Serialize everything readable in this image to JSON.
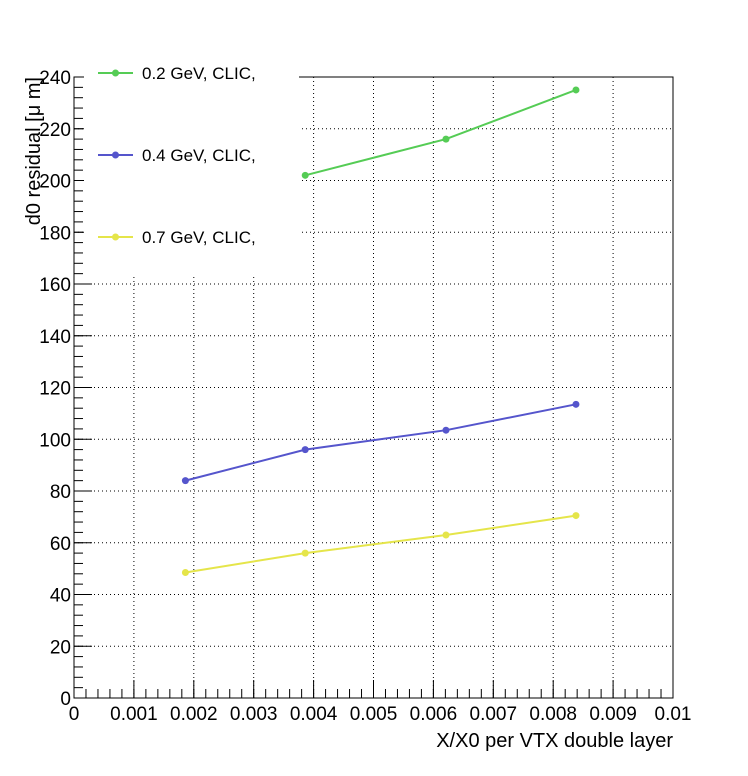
{
  "chart_data": {
    "type": "line",
    "title": "",
    "xlabel": "X/X0 per VTX double layer",
    "ylabel": "d0 residual [μ m]",
    "xlim": [
      0,
      0.01
    ],
    "ylim": [
      0,
      240
    ],
    "grid": true,
    "legend_position": "top-left",
    "x_ticks": [
      0,
      0.001,
      0.002,
      0.003,
      0.004,
      0.005,
      0.006,
      0.007,
      0.008,
      0.009,
      0.01
    ],
    "y_ticks": [
      0,
      20,
      40,
      60,
      80,
      100,
      120,
      140,
      160,
      180,
      200,
      220,
      240
    ],
    "series": [
      {
        "name": "0.2 GeV, CLIC,",
        "color": "#55cc55",
        "x": [
          0.00386,
          0.00621,
          0.00838
        ],
        "y": [
          202,
          216,
          235
        ]
      },
      {
        "name": "0.4 GeV, CLIC,",
        "color": "#5555cc",
        "x": [
          0.00186,
          0.00386,
          0.00621,
          0.00838
        ],
        "y": [
          84,
          96,
          103.5,
          113.5
        ]
      },
      {
        "name": "0.7 GeV, CLIC,",
        "color": "#e5e54a",
        "x": [
          0.00186,
          0.00386,
          0.00621,
          0.00838
        ],
        "y": [
          48.5,
          56,
          63,
          70.5
        ]
      }
    ]
  }
}
